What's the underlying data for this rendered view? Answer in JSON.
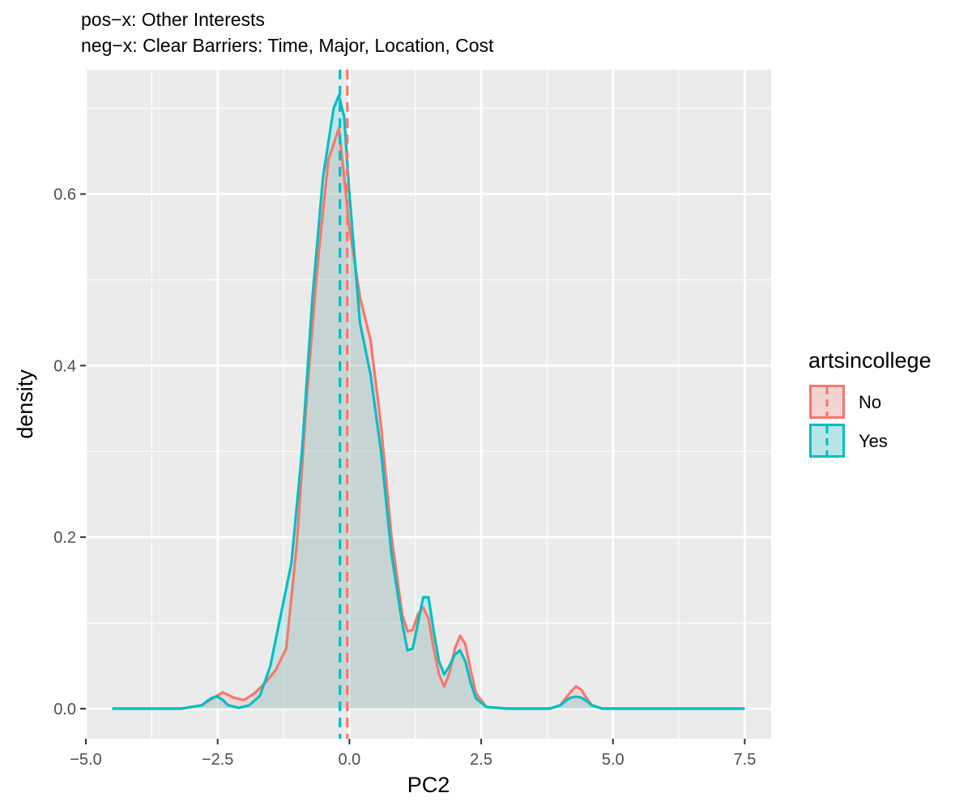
{
  "chart_data": {
    "type": "area",
    "title_lines": [
      "pos−x: Other Interests",
      "neg−x: Clear Barriers: Time, Major, Location, Cost"
    ],
    "xlabel": "PC2",
    "ylabel": "density",
    "xlim": [
      -5.0,
      8.0
    ],
    "ylim": [
      -0.035,
      0.745
    ],
    "x_ticks": [
      -5.0,
      -2.5,
      0.0,
      2.5,
      5.0,
      7.5
    ],
    "x_tick_labels": [
      "−5.0",
      "−2.5",
      "0.0",
      "2.5",
      "5.0",
      "7.5"
    ],
    "y_ticks": [
      0.0,
      0.2,
      0.4,
      0.6
    ],
    "y_tick_labels": [
      "0.0",
      "0.2",
      "0.4",
      "0.6"
    ],
    "grid": true,
    "legend": {
      "title": "artsincollege",
      "position": "right",
      "entries": [
        "No",
        "Yes"
      ]
    },
    "series": [
      {
        "name": "No",
        "color": "#F8766D",
        "mean": -0.04,
        "x": [
          -4.5,
          -3.2,
          -2.8,
          -2.6,
          -2.4,
          -2.2,
          -2.0,
          -1.8,
          -1.6,
          -1.4,
          -1.2,
          -1.0,
          -0.8,
          -0.6,
          -0.4,
          -0.2,
          0.0,
          0.2,
          0.4,
          0.6,
          0.8,
          1.0,
          1.1,
          1.2,
          1.3,
          1.4,
          1.5,
          1.6,
          1.7,
          1.8,
          1.9,
          2.0,
          2.1,
          2.2,
          2.3,
          2.4,
          2.6,
          3.0,
          3.8,
          4.0,
          4.1,
          4.2,
          4.3,
          4.4,
          4.5,
          4.6,
          4.8,
          5.5,
          7.5
        ],
        "y": [
          0.0,
          0.0,
          0.004,
          0.012,
          0.019,
          0.013,
          0.01,
          0.018,
          0.03,
          0.045,
          0.07,
          0.19,
          0.37,
          0.52,
          0.64,
          0.677,
          0.56,
          0.48,
          0.43,
          0.33,
          0.2,
          0.11,
          0.09,
          0.092,
          0.11,
          0.118,
          0.105,
          0.07,
          0.04,
          0.026,
          0.042,
          0.07,
          0.085,
          0.075,
          0.045,
          0.018,
          0.002,
          0.0,
          0.0,
          0.004,
          0.012,
          0.02,
          0.026,
          0.022,
          0.012,
          0.004,
          0.0,
          0.0,
          0.0
        ]
      },
      {
        "name": "Yes",
        "color": "#00BFC4",
        "mean": -0.18,
        "x": [
          -4.5,
          -3.2,
          -2.8,
          -2.7,
          -2.6,
          -2.5,
          -2.4,
          -2.3,
          -2.1,
          -1.9,
          -1.7,
          -1.5,
          -1.3,
          -1.1,
          -0.9,
          -0.7,
          -0.5,
          -0.3,
          -0.2,
          -0.1,
          0.0,
          0.2,
          0.4,
          0.6,
          0.8,
          1.0,
          1.1,
          1.2,
          1.3,
          1.4,
          1.5,
          1.6,
          1.7,
          1.8,
          1.9,
          2.0,
          2.1,
          2.2,
          2.3,
          2.4,
          2.6,
          3.0,
          3.8,
          4.0,
          4.1,
          4.2,
          4.3,
          4.4,
          4.5,
          4.6,
          4.8,
          5.5,
          7.5
        ],
        "y": [
          0.0,
          0.0,
          0.004,
          0.009,
          0.013,
          0.014,
          0.01,
          0.004,
          0.001,
          0.004,
          0.015,
          0.05,
          0.11,
          0.17,
          0.3,
          0.48,
          0.62,
          0.7,
          0.715,
          0.69,
          0.6,
          0.45,
          0.39,
          0.3,
          0.18,
          0.1,
          0.068,
          0.07,
          0.1,
          0.13,
          0.13,
          0.09,
          0.055,
          0.04,
          0.05,
          0.063,
          0.068,
          0.055,
          0.03,
          0.012,
          0.002,
          0.0,
          0.0,
          0.004,
          0.009,
          0.013,
          0.014,
          0.013,
          0.009,
          0.004,
          0.0,
          0.0,
          0.0
        ]
      }
    ]
  }
}
